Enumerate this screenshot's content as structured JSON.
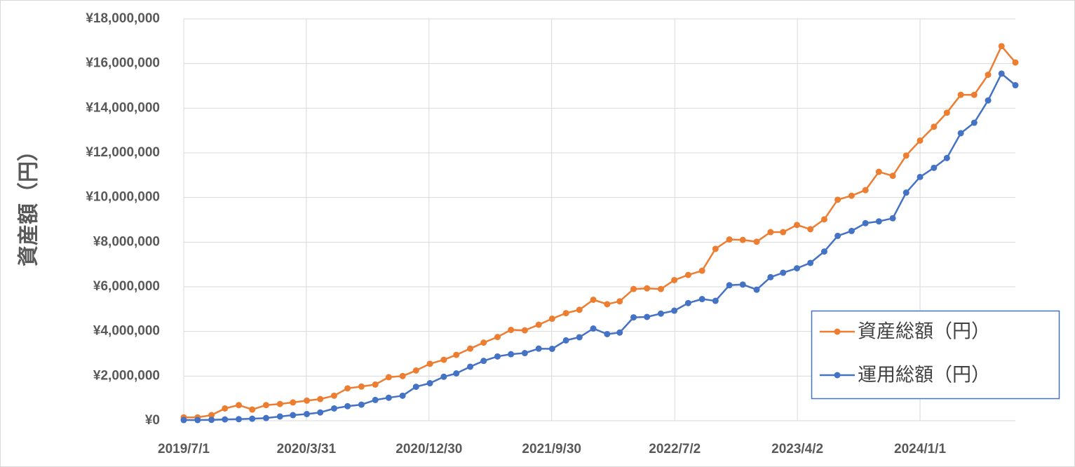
{
  "chart_data": {
    "type": "line",
    "y_label": "資産額（円）",
    "x": [
      "2019/7/1",
      "2019/8/1",
      "2019/9/1",
      "2019/10/1",
      "2019/11/1",
      "2019/12/1",
      "2020/1/1",
      "2020/2/1",
      "2020/3/1",
      "2020/4/1",
      "2020/5/1",
      "2020/6/1",
      "2020/7/1",
      "2020/8/1",
      "2020/9/1",
      "2020/10/1",
      "2020/11/1",
      "2020/12/1",
      "2021/1/1",
      "2021/2/1",
      "2021/3/1",
      "2021/4/1",
      "2021/5/1",
      "2021/6/1",
      "2021/7/1",
      "2021/8/1",
      "2021/9/1",
      "2021/10/1",
      "2021/11/1",
      "2021/12/1",
      "2022/1/1",
      "2022/2/1",
      "2022/3/1",
      "2022/4/1",
      "2022/5/1",
      "2022/6/1",
      "2022/7/1",
      "2022/8/1",
      "2022/9/1",
      "2022/10/1",
      "2022/11/1",
      "2022/12/1",
      "2023/1/1",
      "2023/2/1",
      "2023/3/1",
      "2023/4/1",
      "2023/5/1",
      "2023/6/1",
      "2023/7/1",
      "2023/8/1",
      "2023/9/1",
      "2023/10/1",
      "2023/11/1",
      "2023/12/1",
      "2024/1/1",
      "2024/2/1",
      "2024/3/1",
      "2024/4/1",
      "2024/5/1",
      "2024/6/1",
      "2024/7/1",
      "2024/8/1"
    ],
    "series": [
      {
        "name": "資産総額（円）",
        "color": "#ed7d31",
        "values": [
          150000,
          150000,
          250000,
          550000,
          700000,
          500000,
          700000,
          750000,
          820000,
          900000,
          970000,
          1120000,
          1450000,
          1530000,
          1620000,
          1950000,
          2000000,
          2250000,
          2550000,
          2730000,
          2950000,
          3230000,
          3500000,
          3750000,
          4070000,
          4050000,
          4300000,
          4570000,
          4820000,
          4970000,
          5420000,
          5220000,
          5350000,
          5900000,
          5930000,
          5900000,
          6300000,
          6530000,
          6720000,
          7700000,
          8120000,
          8100000,
          8020000,
          8450000,
          8450000,
          8770000,
          8580000,
          9020000,
          9900000,
          10080000,
          10330000,
          11150000,
          10970000,
          11880000,
          12550000,
          13170000,
          13800000,
          14600000,
          14600000,
          15500000,
          16780000,
          16050000
        ]
      },
      {
        "name": "運用総額（円）",
        "color": "#4472c4",
        "values": [
          30000,
          30000,
          40000,
          60000,
          70000,
          90000,
          120000,
          190000,
          250000,
          300000,
          370000,
          550000,
          650000,
          720000,
          930000,
          1030000,
          1120000,
          1520000,
          1680000,
          1970000,
          2120000,
          2420000,
          2680000,
          2880000,
          2980000,
          3030000,
          3230000,
          3220000,
          3600000,
          3740000,
          4130000,
          3880000,
          3950000,
          4630000,
          4650000,
          4800000,
          4930000,
          5270000,
          5450000,
          5370000,
          6070000,
          6100000,
          5870000,
          6430000,
          6630000,
          6830000,
          7070000,
          7580000,
          8280000,
          8500000,
          8850000,
          8930000,
          9070000,
          10220000,
          10920000,
          11330000,
          11770000,
          12880000,
          13350000,
          14350000,
          15550000,
          15030000
        ]
      }
    ],
    "xlim": [
      "2019/7/1",
      "2024/8/1"
    ],
    "xticks": [
      "2019/7/1",
      "2020/3/31",
      "2020/12/30",
      "2021/9/30",
      "2022/7/2",
      "2023/4/2",
      "2024/1/1"
    ],
    "ylim": [
      0,
      18000000
    ],
    "yticks": [
      {
        "value": 0,
        "label": "¥0"
      },
      {
        "value": 2000000,
        "label": "¥2,000,000"
      },
      {
        "value": 4000000,
        "label": "¥4,000,000"
      },
      {
        "value": 6000000,
        "label": "¥6,000,000"
      },
      {
        "value": 8000000,
        "label": "¥8,000,000"
      },
      {
        "value": 10000000,
        "label": "¥10,000,000"
      },
      {
        "value": 12000000,
        "label": "¥12,000,000"
      },
      {
        "value": 14000000,
        "label": "¥14,000,000"
      },
      {
        "value": 16000000,
        "label": "¥16,000,000"
      },
      {
        "value": 18000000,
        "label": "¥18,000,000"
      }
    ],
    "grid": true,
    "legend": "lower right"
  }
}
